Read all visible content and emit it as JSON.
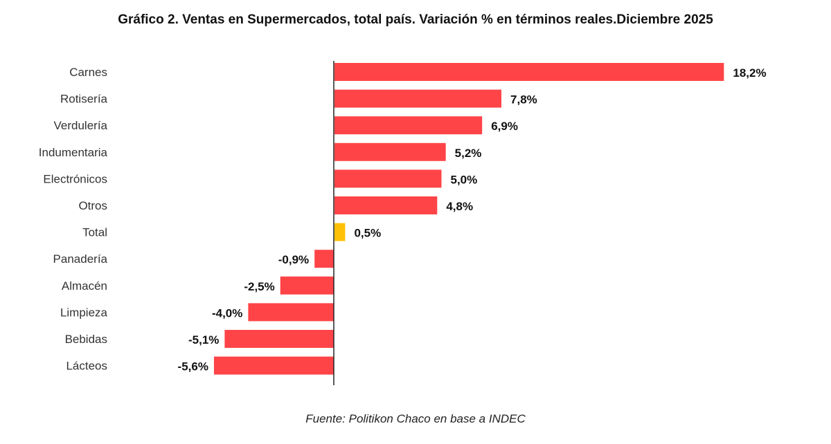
{
  "chart_data": {
    "type": "bar",
    "orientation": "horizontal",
    "title": "Gráfico 2. Ventas en Supermercados, total país. Variación % en términos reales.Diciembre 2025",
    "source": "Fuente: Politikon Chaco en base a INDEC",
    "categories": [
      "Carnes",
      "Rotisería",
      "Verdulería",
      "Indumentaria",
      "Electrónicos",
      "Otros",
      "Total",
      "Panadería",
      "Almacén",
      "Limpieza",
      "Bebidas",
      "Lácteos"
    ],
    "values": [
      18.2,
      7.8,
      6.9,
      5.2,
      5.0,
      4.8,
      0.5,
      -0.9,
      -2.5,
      -4.0,
      -5.1,
      -5.6
    ],
    "labels": [
      "18,2%",
      "7,8%",
      "6,9%",
      "5,2%",
      "5,0%",
      "4,8%",
      "0,5%",
      "-0,9%",
      "-2,5%",
      "-4,0%",
      "-5,1%",
      "-5,6%"
    ],
    "highlight_category": "Total",
    "colors": {
      "bar": "#FF4447",
      "highlight": "#FFC107",
      "axis": "#222222"
    },
    "grid": false,
    "legend": "none",
    "xlim": [
      -5.6,
      18.2
    ]
  }
}
